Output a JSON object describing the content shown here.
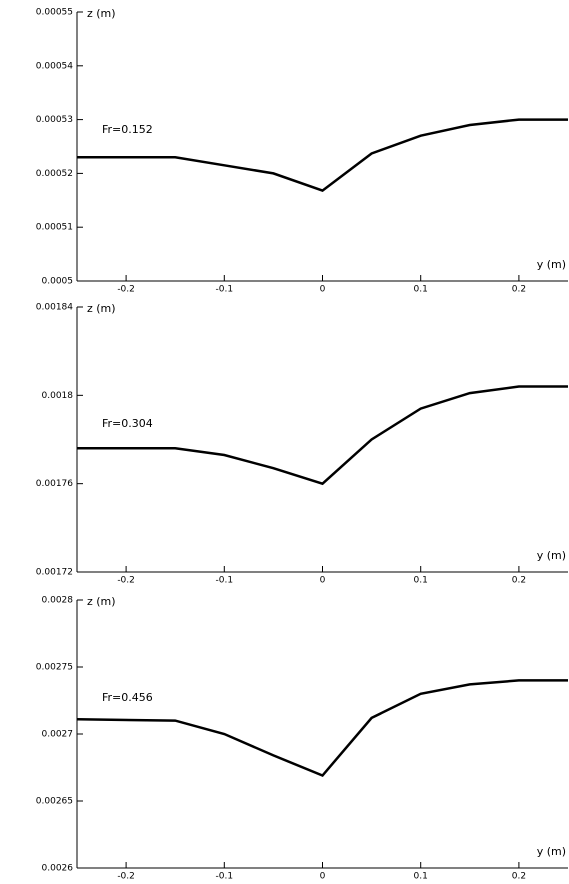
{
  "chart_data": [
    {
      "type": "line",
      "ylabel": "z (m)",
      "xlabel": "y (m)",
      "annotation": "Fr=0.152",
      "x": [
        -0.25,
        -0.15,
        -0.1,
        -0.05,
        0,
        0.05,
        0.1,
        0.15,
        0.2,
        0.25
      ],
      "values": [
        0.000523,
        0.000523,
        0.0005215,
        0.00052,
        0.0005168,
        0.0005237,
        0.000527,
        0.000529,
        0.00053,
        0.00053
      ],
      "color": "#000000",
      "xlim": [
        -0.25,
        0.25
      ],
      "ylim": [
        0.0005,
        0.00055
      ],
      "xticks": [
        -0.2,
        -0.1,
        0,
        0.1,
        0.2
      ],
      "yticks": [
        0.0005,
        0.00051,
        0.00052,
        0.00053,
        0.00054,
        0.00055
      ]
    },
    {
      "type": "line",
      "ylabel": "z (m)",
      "xlabel": "y (m)",
      "annotation": "Fr=0.304",
      "x": [
        -0.25,
        -0.15,
        -0.1,
        -0.05,
        0,
        0.05,
        0.1,
        0.15,
        0.2,
        0.25
      ],
      "values": [
        0.001776,
        0.001776,
        0.001773,
        0.001767,
        0.00176,
        0.00178,
        0.001794,
        0.001801,
        0.001804,
        0.001804
      ],
      "color": "#000000",
      "xlim": [
        -0.25,
        0.25
      ],
      "ylim": [
        0.00172,
        0.00184
      ],
      "xticks": [
        -0.2,
        -0.1,
        0,
        0.1,
        0.2
      ],
      "yticks": [
        0.00172,
        0.00176,
        0.0018,
        0.00184
      ]
    },
    {
      "type": "line",
      "ylabel": "z (m)",
      "xlabel": "y (m)",
      "annotation": "Fr=0.456",
      "x": [
        -0.25,
        -0.15,
        -0.1,
        -0.05,
        0,
        0.05,
        0.1,
        0.15,
        0.2,
        0.25
      ],
      "values": [
        0.002711,
        0.00271,
        0.0027,
        0.002684,
        0.002669,
        0.002712,
        0.00273,
        0.002737,
        0.00274,
        0.00274
      ],
      "color": "#000000",
      "xlim": [
        -0.25,
        0.25
      ],
      "ylim": [
        0.0026,
        0.0028
      ],
      "xticks": [
        -0.2,
        -0.1,
        0,
        0.1,
        0.2
      ],
      "yticks": [
        0.0026,
        0.00265,
        0.0027,
        0.00275,
        0.0028
      ]
    }
  ]
}
